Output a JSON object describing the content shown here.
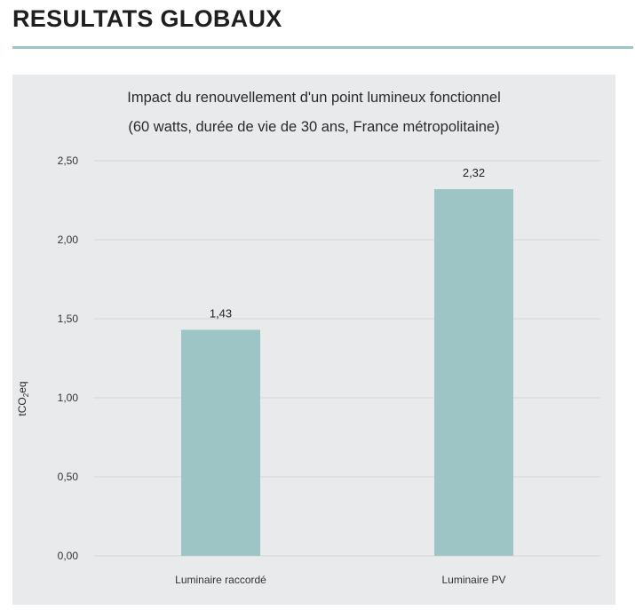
{
  "page": {
    "heading": "RESULTATS GLOBAUX"
  },
  "colors": {
    "accent": "#9ec5c6",
    "bar": "#9ec5c6",
    "panel": "#e8eaeb",
    "grid": "#d3d7d9"
  },
  "chart_data": {
    "type": "bar",
    "title": "Impact du renouvellement d'un point lumineux fonctionnel",
    "subtitle": "(60 watts, durée de vie de 30 ans, France métropolitaine)",
    "ylabel": "tCO₂eq",
    "categories": [
      "Luminaire raccordé",
      "Luminaire PV"
    ],
    "values": [
      1.43,
      2.32
    ],
    "data_labels": [
      "1,43",
      "2,32"
    ],
    "ylim": [
      0,
      2.5
    ],
    "yticks": [
      0,
      0.5,
      1.0,
      1.5,
      2.0,
      2.5
    ],
    "ytick_labels": [
      "0,00",
      "0,50",
      "1,00",
      "1,50",
      "2,00",
      "2,50"
    ],
    "grid": true,
    "legend": "none"
  }
}
